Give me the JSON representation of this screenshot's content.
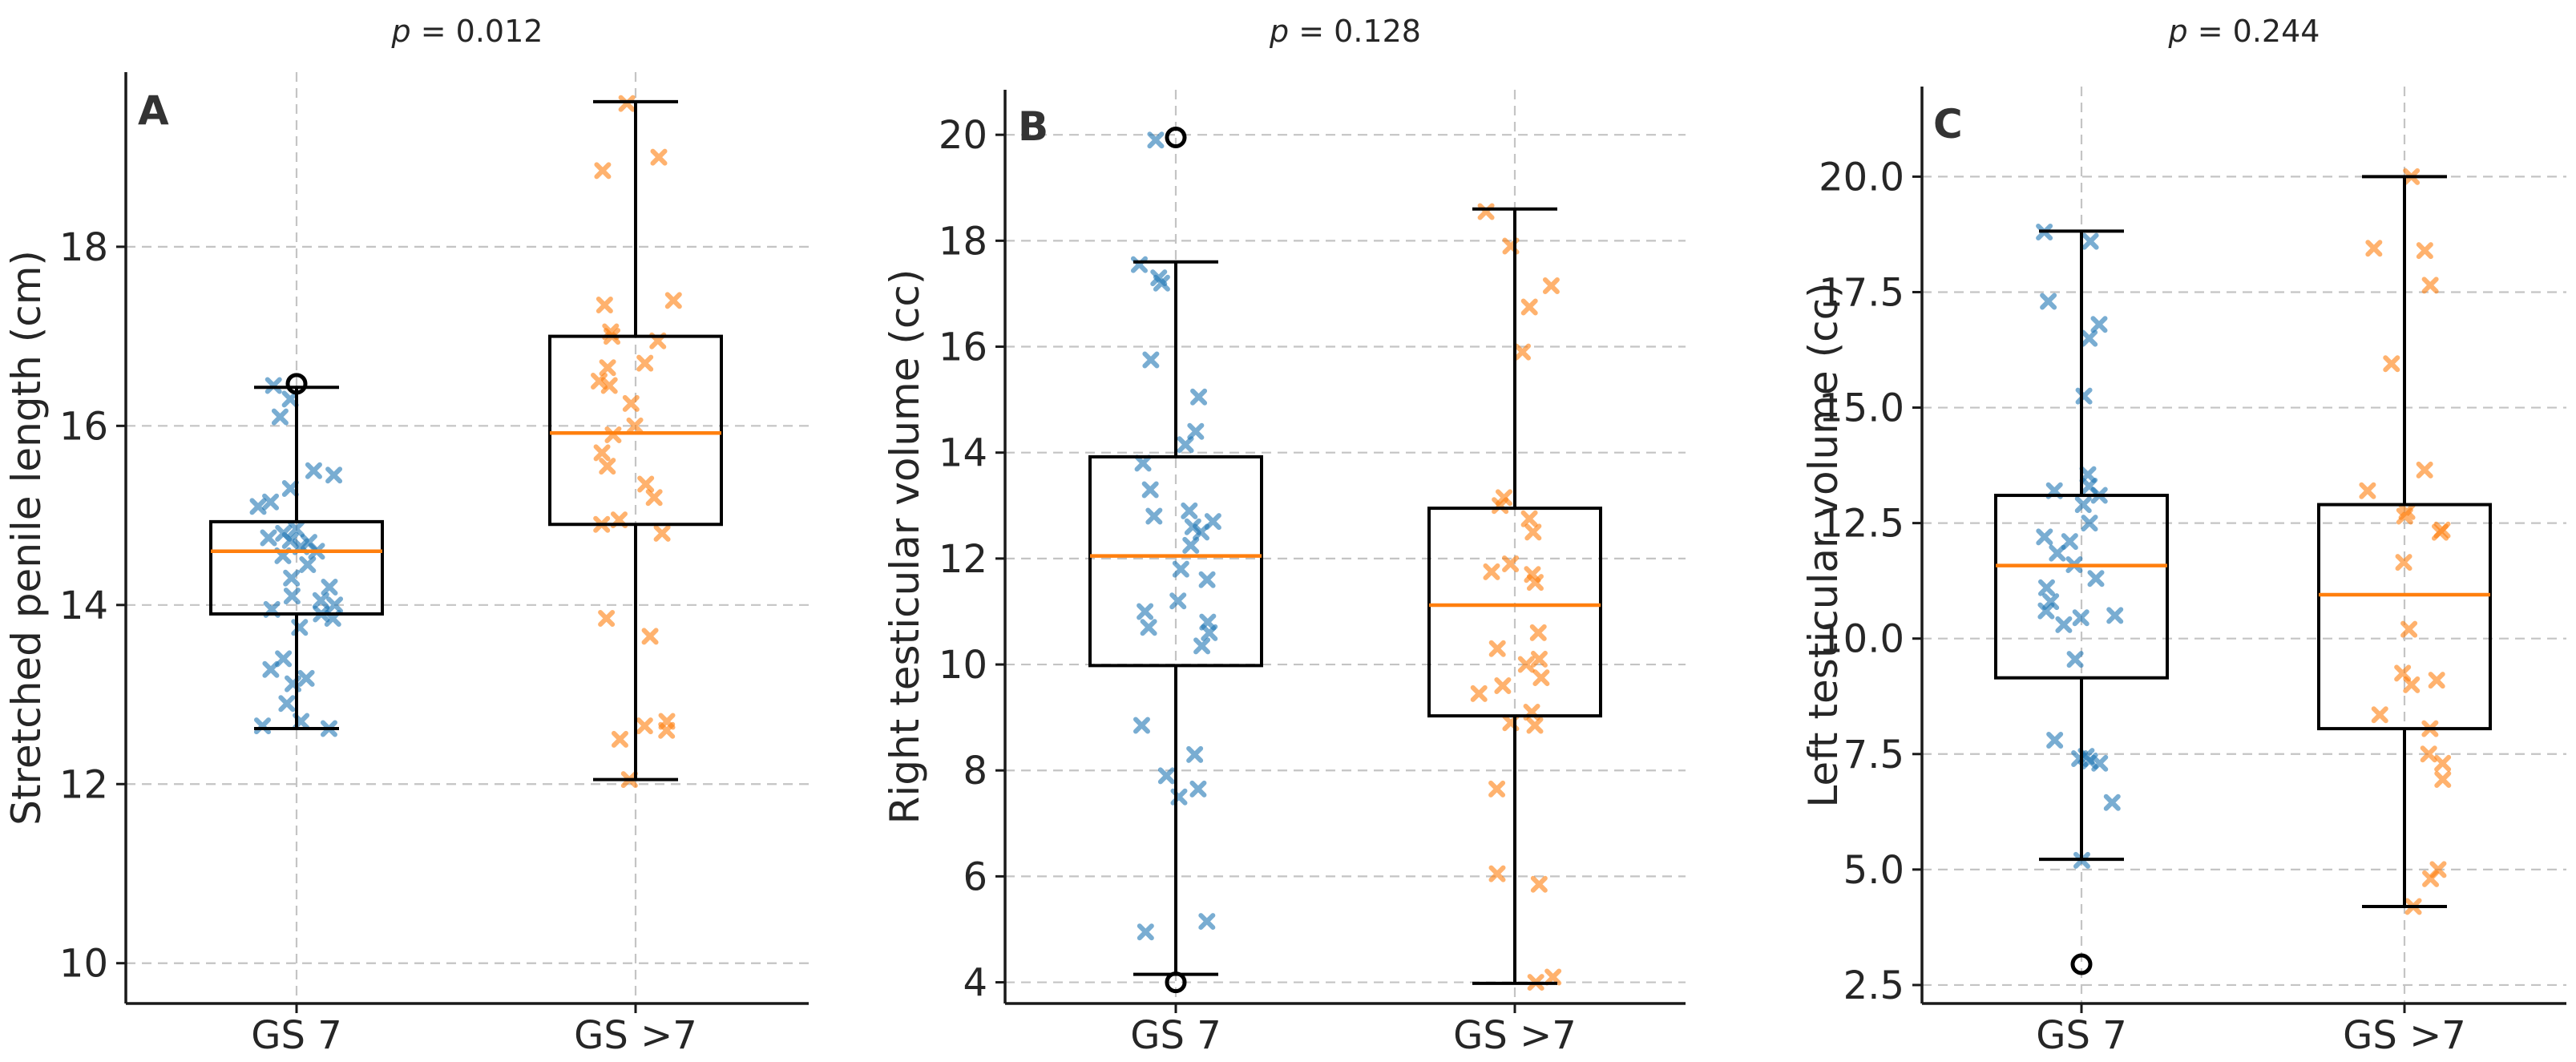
{
  "colors": {
    "group1": "#1f77b4",
    "group2": "#ff7f0e",
    "median": "#ff7f0e",
    "box": "#000000",
    "grid": "#c4c4c4"
  },
  "chart_data": [
    {
      "type": "box",
      "panel": "A",
      "title_prefix": "p",
      "title_value": " = 0.012",
      "ylabel": "Stretched penile length (cm)",
      "ylim": [
        9.55,
        19.95
      ],
      "yticks": [
        10,
        12,
        14,
        16,
        18
      ],
      "ytick_labels": [
        "10",
        "12",
        "14",
        "16",
        "18"
      ],
      "categories": [
        "GS 7",
        "GS >7"
      ],
      "grid": true,
      "series": [
        {
          "q1": 13.9,
          "median": 14.6,
          "q3": 14.93,
          "whisker_low": 12.62,
          "whisker_high": 16.43,
          "fliers": [
            16.47
          ],
          "points": [
            12.62,
            12.65,
            12.7,
            12.9,
            13.12,
            13.18,
            13.28,
            13.4,
            13.75,
            13.85,
            13.9,
            13.95,
            14.0,
            14.05,
            14.1,
            14.2,
            14.3,
            14.45,
            14.55,
            14.6,
            14.65,
            14.7,
            14.72,
            14.75,
            14.8,
            14.85,
            15.1,
            15.15,
            15.3,
            15.45,
            15.5,
            16.1,
            16.3,
            16.45
          ]
        },
        {
          "q1": 14.9,
          "median": 15.92,
          "q3": 17.0,
          "whisker_low": 12.05,
          "whisker_high": 19.62,
          "fliers": [],
          "points": [
            12.05,
            12.5,
            12.6,
            12.65,
            12.7,
            13.65,
            13.85,
            14.8,
            14.9,
            14.95,
            15.2,
            15.35,
            15.55,
            15.7,
            15.9,
            16.0,
            16.25,
            16.45,
            16.5,
            16.65,
            16.7,
            16.95,
            17.0,
            17.05,
            17.35,
            17.4,
            18.85,
            19.0,
            19.6
          ]
        }
      ]
    },
    {
      "type": "box",
      "panel": "B",
      "title_prefix": "p",
      "title_value": " = 0.128",
      "ylabel": "Right testicular volume (cc)",
      "ylim": [
        3.6,
        20.85
      ],
      "yticks": [
        4,
        6,
        8,
        10,
        12,
        14,
        16,
        18,
        20
      ],
      "ytick_labels": [
        "4",
        "6",
        "8",
        "10",
        "12",
        "14",
        "16",
        "18",
        "20"
      ],
      "categories": [
        "GS 7",
        "GS >7"
      ],
      "grid": true,
      "series": [
        {
          "q1": 9.98,
          "median": 12.05,
          "q3": 13.92,
          "whisker_low": 4.15,
          "whisker_high": 17.6,
          "fliers": [
            19.95,
            4.0
          ],
          "points": [
            4.95,
            5.15,
            7.5,
            7.65,
            7.9,
            8.3,
            8.85,
            10.35,
            10.6,
            10.7,
            10.8,
            11.0,
            11.2,
            11.6,
            11.8,
            12.25,
            12.5,
            12.6,
            12.7,
            12.8,
            12.9,
            13.3,
            13.8,
            14.15,
            14.4,
            15.05,
            15.75,
            17.2,
            17.3,
            17.55,
            19.9
          ]
        },
        {
          "q1": 9.03,
          "median": 11.12,
          "q3": 12.95,
          "whisker_low": 3.98,
          "whisker_high": 18.6,
          "fliers": [],
          "points": [
            4.0,
            4.1,
            5.85,
            6.05,
            7.65,
            8.85,
            8.9,
            9.1,
            9.45,
            9.6,
            9.75,
            10.0,
            10.1,
            10.3,
            10.6,
            11.55,
            11.7,
            11.75,
            11.9,
            12.5,
            12.75,
            13.0,
            13.15,
            15.9,
            16.75,
            17.15,
            17.9,
            18.55
          ]
        }
      ]
    },
    {
      "type": "box",
      "panel": "C",
      "title_prefix": "p",
      "title_value": " = 0.244",
      "ylabel": "Left testicular volume (cc)",
      "ylim": [
        2.1,
        21.95
      ],
      "yticks": [
        2.5,
        5.0,
        7.5,
        10.0,
        12.5,
        15.0,
        17.5,
        20.0
      ],
      "ytick_labels": [
        "2.5",
        "5.0",
        "7.5",
        "10.0",
        "12.5",
        "15.0",
        "17.5",
        "20.0"
      ],
      "categories": [
        "GS 7",
        "GS >7"
      ],
      "grid": true,
      "series": [
        {
          "q1": 9.15,
          "median": 11.58,
          "q3": 13.1,
          "whisker_low": 5.22,
          "whisker_high": 18.82,
          "fliers": [
            2.95
          ],
          "points": [
            5.2,
            6.45,
            7.3,
            7.35,
            7.4,
            7.45,
            7.8,
            9.55,
            10.3,
            10.45,
            10.5,
            10.6,
            10.8,
            11.1,
            11.3,
            11.6,
            11.85,
            12.1,
            12.2,
            12.5,
            12.9,
            13.1,
            13.2,
            13.3,
            13.55,
            15.25,
            16.5,
            16.8,
            17.3,
            18.6,
            18.8
          ]
        },
        {
          "q1": 8.05,
          "median": 10.95,
          "q3": 12.9,
          "whisker_low": 4.2,
          "whisker_high": 20.0,
          "fliers": [],
          "points": [
            4.2,
            4.8,
            5.0,
            6.95,
            7.3,
            7.5,
            8.05,
            8.35,
            9.0,
            9.1,
            9.25,
            10.2,
            11.65,
            12.3,
            12.35,
            12.65,
            12.75,
            13.2,
            13.65,
            15.95,
            17.65,
            18.4,
            18.45,
            20.0
          ]
        }
      ]
    }
  ]
}
